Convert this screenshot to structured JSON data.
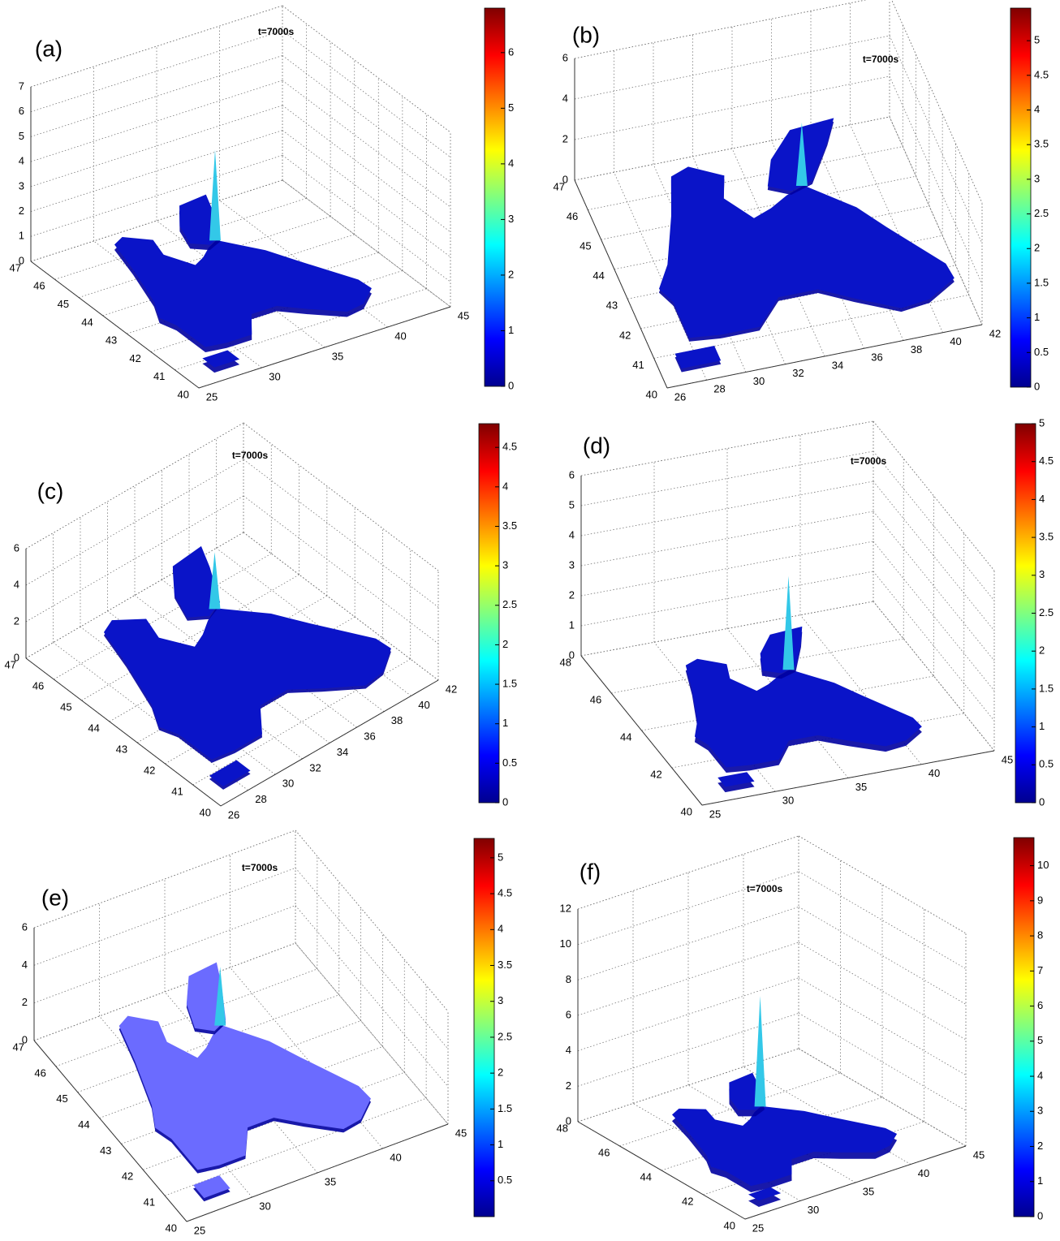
{
  "chart_data": [
    {
      "type": "surface",
      "panel_label": "(a)",
      "title": "t=7000s",
      "color": "#0a14c8",
      "zlim": [
        0,
        7
      ],
      "zticks": [
        0,
        1,
        2,
        3,
        4,
        5,
        6,
        7
      ],
      "ylim": [
        40,
        47
      ],
      "yticks": [
        40,
        41,
        42,
        43,
        44,
        45,
        46,
        47
      ],
      "xlim": [
        25,
        45
      ],
      "xticks": [
        25,
        30,
        35,
        40,
        45
      ],
      "clim": [
        0,
        6.8
      ],
      "cticks": [
        0,
        1,
        2,
        3,
        4,
        5,
        6
      ]
    },
    {
      "type": "surface",
      "panel_label": "(b)",
      "title": "t=7000s",
      "color": "#0a14c8",
      "zlim": [
        0,
        6
      ],
      "zticks": [
        0,
        2,
        4,
        6
      ],
      "ylim": [
        40,
        47
      ],
      "yticks": [
        40,
        41,
        42,
        43,
        44,
        45,
        46,
        47
      ],
      "xlim": [
        26,
        42
      ],
      "xticks": [
        26,
        28,
        30,
        32,
        34,
        36,
        38,
        40,
        42
      ],
      "clim": [
        0,
        5.47
      ],
      "cticks": [
        0,
        0.5,
        1,
        1.5,
        2,
        2.5,
        3,
        3.5,
        4,
        4.5,
        5
      ]
    },
    {
      "type": "surface",
      "panel_label": "(c)",
      "title": "t=7000s",
      "color": "#0a14c8",
      "zlim": [
        0,
        6
      ],
      "zticks": [
        0,
        2,
        4,
        6
      ],
      "ylim": [
        40,
        47
      ],
      "yticks": [
        40,
        41,
        42,
        43,
        44,
        45,
        46,
        47
      ],
      "xlim": [
        26,
        42
      ],
      "xticks": [
        26,
        28,
        30,
        32,
        34,
        36,
        38,
        40,
        42
      ],
      "clim": [
        0,
        4.8
      ],
      "cticks": [
        0,
        0.5,
        1,
        1.5,
        2,
        2.5,
        3,
        3.5,
        4,
        4.5
      ]
    },
    {
      "type": "surface",
      "panel_label": "(d)",
      "title": "t=7000s",
      "color": "#0a14c8",
      "zlim": [
        0,
        6
      ],
      "zticks": [
        0,
        1,
        2,
        3,
        4,
        5,
        6
      ],
      "ylim": [
        40,
        48
      ],
      "yticks": [
        40,
        42,
        44,
        46,
        48
      ],
      "xlim": [
        25,
        45
      ],
      "xticks": [
        25,
        30,
        35,
        40,
        45
      ],
      "clim": [
        0,
        5
      ],
      "cticks": [
        0,
        0.5,
        1,
        1.5,
        2,
        2.5,
        3,
        3.5,
        4,
        4.5,
        5
      ]
    },
    {
      "type": "surface",
      "panel_label": "(e)",
      "title": "t=7000s",
      "color": "#6b6bff",
      "zlim": [
        0,
        6
      ],
      "zticks": [
        0,
        2,
        4,
        6
      ],
      "ylim": [
        40,
        47
      ],
      "yticks": [
        40,
        41,
        42,
        43,
        44,
        45,
        46,
        47
      ],
      "xlim": [
        25,
        45
      ],
      "xticks": [
        25,
        30,
        35,
        40,
        45
      ],
      "clim": [
        0,
        5.27
      ],
      "cticks": [
        0.5,
        1,
        1.5,
        2,
        2.5,
        3,
        3.5,
        4,
        4.5,
        5
      ]
    },
    {
      "type": "surface",
      "panel_label": "(f)",
      "title": "t=7000s",
      "color": "#0a14c8",
      "zlim": [
        0,
        12
      ],
      "zticks": [
        0,
        2,
        4,
        6,
        8,
        10,
        12
      ],
      "ylim": [
        40,
        48
      ],
      "yticks": [
        40,
        42,
        44,
        46,
        48
      ],
      "xlim": [
        25,
        45
      ],
      "xticks": [
        25,
        30,
        35,
        40,
        45
      ],
      "clim": [
        0,
        10.8
      ],
      "cticks": [
        0,
        1,
        2,
        3,
        4,
        5,
        6,
        7,
        8,
        9,
        10
      ]
    }
  ]
}
